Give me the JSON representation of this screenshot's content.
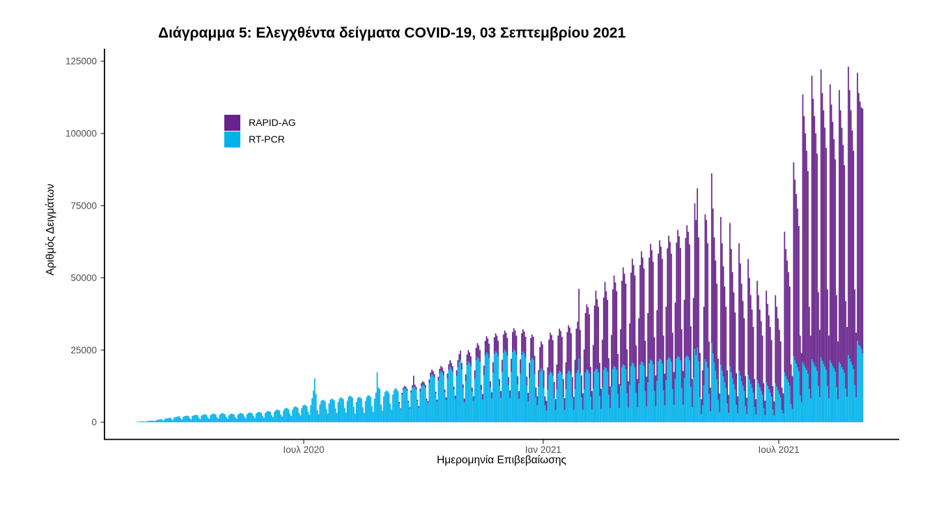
{
  "page": {
    "background": "#ffffff"
  },
  "chart_data": {
    "type": "bar",
    "stacked": true,
    "grid": false,
    "title": "Διάγραμμα 5: Ελεγχθέντα δείγματα COVID-19, 03 Σεπτεμβρίου 2021",
    "xlabel": "Ημερομηνία Επιβεβαίωσης",
    "ylabel": "Αριθμός Δειγμάτων",
    "x_unit": "day",
    "x_start_date": "2020-02-23",
    "x_end_date": "2021-09-03",
    "ylim": [
      0,
      125000
    ],
    "y_ticks": [
      0,
      25000,
      50000,
      75000,
      100000,
      125000
    ],
    "x_ticks": [
      {
        "label": "Ιουλ 2020",
        "day": 129
      },
      {
        "label": "Ιαν 2021",
        "day": 313
      },
      {
        "label": "Ιουλ 2021",
        "day": 494
      }
    ],
    "legend_position": "inside-top-left",
    "legend": [
      {
        "label": "RAPID-AG",
        "color": "#67238b"
      },
      {
        "label": "RT-PCR",
        "color": "#00b2e9"
      }
    ],
    "axis_color": "#000000",
    "tick_text_color": "#4d4d4d",
    "series": [
      {
        "name": "RT-PCR",
        "color": "#00b2e9",
        "values": [
          100,
          150,
          200,
          250,
          250,
          300,
          250,
          200,
          400,
          450,
          500,
          550,
          600,
          500,
          400,
          700,
          800,
          900,
          1000,
          1100,
          800,
          600,
          1200,
          1300,
          1400,
          1500,
          1600,
          1100,
          800,
          1600,
          1800,
          1900,
          2000,
          2100,
          1400,
          900,
          1900,
          2100,
          2200,
          2300,
          2200,
          1500,
          1000,
          2200,
          2400,
          2500,
          2600,
          2400,
          1600,
          1100,
          2300,
          2600,
          2800,
          2700,
          2500,
          1700,
          1200,
          2500,
          2800,
          3000,
          2900,
          2700,
          1800,
          1300,
          2600,
          3000,
          3200,
          3000,
          2800,
          1900,
          1200,
          2400,
          2800,
          3000,
          2900,
          2700,
          1800,
          1300,
          2600,
          3000,
          3200,
          3100,
          2900,
          2000,
          1400,
          2800,
          3200,
          3400,
          3300,
          3100,
          2100,
          1500,
          3000,
          3400,
          3600,
          3500,
          3300,
          2200,
          1600,
          3200,
          3700,
          3900,
          3800,
          3600,
          2400,
          1800,
          3600,
          4200,
          4400,
          4300,
          4000,
          2700,
          2000,
          4000,
          4700,
          5000,
          4800,
          4500,
          3000,
          2200,
          4400,
          5200,
          5500,
          5300,
          5000,
          3300,
          2400,
          4900,
          5800,
          6100,
          5900,
          5500,
          3600,
          2600,
          6000,
          8300,
          11000,
          15200,
          9800,
          4200,
          2800,
          6200,
          7400,
          7800,
          7600,
          7200,
          4600,
          3000,
          6600,
          7800,
          8200,
          8000,
          7600,
          4800,
          3200,
          7000,
          8200,
          8600,
          8400,
          8000,
          5000,
          3400,
          7400,
          8800,
          9200,
          9000,
          8600,
          5400,
          3000,
          7000,
          8400,
          8800,
          8600,
          8200,
          5200,
          3200,
          7400,
          8800,
          9400,
          9200,
          8800,
          5600,
          3600,
          8200,
          10200,
          17300,
          12000,
          11500,
          6200,
          4000,
          9000,
          10500,
          11000,
          10800,
          10200,
          6600,
          4400,
          9600,
          11200,
          11800,
          11500,
          10800,
          6700,
          4600,
          9800,
          11500,
          12000,
          11700,
          11100,
          7100,
          4900,
          10400,
          12000,
          12500,
          12100,
          11500,
          7400,
          5200,
          10800,
          12600,
          13100,
          12800,
          12100,
          7700,
          6800,
          13800,
          16000,
          16800,
          16400,
          15600,
          10000,
          7200,
          14600,
          17000,
          17800,
          17400,
          16400,
          10600,
          7800,
          15400,
          18200,
          19400,
          18600,
          17600,
          11400,
          8200,
          16200,
          19200,
          21000,
          21800,
          18400,
          12000,
          7000,
          14400,
          20000,
          21200,
          20600,
          19600,
          10600,
          7500,
          15300,
          21600,
          22800,
          22200,
          21000,
          11300,
          8000,
          16400,
          23200,
          24400,
          23800,
          22400,
          12200,
          8400,
          17200,
          23800,
          24800,
          24200,
          22800,
          12700,
          8600,
          17600,
          24200,
          25200,
          24600,
          23200,
          13000,
          8600,
          17600,
          24400,
          25400,
          24800,
          23400,
          13200,
          8200,
          17000,
          23600,
          24600,
          24000,
          22600,
          12800,
          7400,
          15400,
          21600,
          22400,
          21800,
          16800,
          8800,
          6000,
          12400,
          17600,
          18800,
          18000,
          12000,
          6000,
          4200,
          11400,
          16600,
          17600,
          17200,
          16200,
          8400,
          4400,
          11600,
          17000,
          18000,
          17600,
          16600,
          8800,
          4400,
          11600,
          17000,
          18000,
          17600,
          16600,
          8800,
          4400,
          11600,
          17200,
          18200,
          22200,
          17000,
          8800,
          4400,
          11600,
          17400,
          18400,
          18000,
          17000,
          9000,
          4600,
          11800,
          17800,
          18800,
          18400,
          17400,
          9200,
          4800,
          12200,
          18200,
          19200,
          18800,
          17600,
          9600,
          5000,
          12400,
          18600,
          19600,
          19200,
          18200,
          9800,
          5000,
          12800,
          19200,
          20200,
          19800,
          18600,
          10200,
          5200,
          13200,
          19600,
          20800,
          20400,
          19200,
          10400,
          5400,
          13600,
          20000,
          21200,
          20800,
          19600,
          10800,
          5600,
          14000,
          20600,
          21800,
          21400,
          20200,
          11000,
          5800,
          14400,
          21200,
          22200,
          21800,
          20400,
          11200,
          6000,
          14800,
          21800,
          22600,
          22200,
          21000,
          11600,
          6200,
          15200,
          22200,
          23000,
          22600,
          21600,
          12000,
          6200,
          15400,
          22600,
          23200,
          22800,
          21600,
          12400,
          5400,
          15600,
          25600,
          23400,
          26000,
          21200,
          8800,
          3000,
          6000,
          13000,
          22000,
          21000,
          19000,
          10000,
          4000,
          27600,
          24000,
          21000,
          18000,
          15000,
          8000,
          3600,
          20000,
          18000,
          16000,
          14000,
          12000,
          6600,
          3400,
          19500,
          17400,
          15400,
          13400,
          11400,
          6200,
          3200,
          18000,
          16200,
          14400,
          12800,
          11000,
          5800,
          3000,
          16600,
          15000,
          13400,
          12000,
          10400,
          5400,
          2800,
          14800,
          13600,
          12200,
          11000,
          9600,
          5000,
          2600,
          14000,
          12800,
          11600,
          10400,
          9000,
          4600,
          2500,
          13600,
          12400,
          11200,
          10000,
          8800,
          4400,
          3200,
          17400,
          16000,
          15000,
          14000,
          12800,
          6400,
          4800,
          23000,
          21600,
          20400,
          19200,
          17800,
          9400,
          7000,
          21000,
          20000,
          19000,
          18200,
          17000,
          11600,
          8400,
          22000,
          21000,
          20000,
          19200,
          18000,
          12600,
          8800,
          22500,
          21400,
          20400,
          19400,
          18200,
          12800,
          8400,
          21600,
          20600,
          19600,
          18800,
          17600,
          12300,
          8000,
          21000,
          20200,
          19200,
          18400,
          17200,
          11800,
          9000,
          23400,
          22200,
          21000,
          20000,
          18600,
          13000,
          8800,
          28400,
          27000,
          26500,
          25500,
          24000
        ]
      },
      {
        "name": "RAPID-AG",
        "color": "#67238b",
        "values": [
          0,
          0,
          0,
          0,
          0,
          0,
          0,
          0,
          0,
          0,
          0,
          0,
          0,
          0,
          0,
          0,
          0,
          0,
          0,
          0,
          0,
          0,
          0,
          0,
          0,
          0,
          0,
          0,
          0,
          0,
          0,
          0,
          0,
          0,
          0,
          0,
          0,
          0,
          0,
          0,
          0,
          0,
          0,
          0,
          0,
          0,
          0,
          0,
          0,
          0,
          0,
          0,
          0,
          0,
          0,
          0,
          0,
          0,
          0,
          0,
          0,
          0,
          0,
          0,
          0,
          0,
          0,
          0,
          0,
          0,
          0,
          0,
          0,
          0,
          0,
          0,
          0,
          0,
          0,
          0,
          0,
          0,
          0,
          0,
          0,
          0,
          0,
          0,
          0,
          0,
          0,
          0,
          0,
          0,
          0,
          0,
          0,
          0,
          0,
          0,
          0,
          0,
          0,
          0,
          0,
          0,
          0,
          0,
          0,
          0,
          0,
          0,
          0,
          0,
          0,
          0,
          0,
          0,
          0,
          0,
          0,
          0,
          0,
          0,
          0,
          0,
          0,
          0,
          0,
          0,
          0,
          0,
          0,
          0,
          0,
          0,
          0,
          0,
          0,
          0,
          0,
          0,
          0,
          0,
          0,
          0,
          0,
          0,
          0,
          0,
          0,
          0,
          0,
          0,
          0,
          0,
          0,
          0,
          0,
          0,
          0,
          0,
          0,
          0,
          0,
          0,
          0,
          0,
          0,
          0,
          0,
          0,
          0,
          0,
          0,
          0,
          0,
          0,
          0,
          0,
          0,
          0,
          0,
          0,
          0,
          0,
          0,
          0,
          0,
          0,
          0,
          0,
          0,
          0,
          0,
          0,
          0,
          0,
          0,
          0,
          0,
          0,
          300,
          200,
          400,
          500,
          600,
          600,
          500,
          300,
          300,
          600,
          800,
          3600,
          900,
          700,
          400,
          400,
          800,
          1000,
          1100,
          1000,
          900,
          500,
          500,
          1000,
          1200,
          1400,
          1300,
          1100,
          600,
          600,
          1200,
          1500,
          1700,
          1600,
          1400,
          700,
          800,
          1500,
          1900,
          2100,
          2000,
          1800,
          900,
          1000,
          1800,
          2300,
          2600,
          3000,
          2200,
          1100,
          1200,
          2200,
          3400,
          3800,
          3600,
          3200,
          1400,
          1500,
          2700,
          4200,
          4600,
          4400,
          4000,
          1700,
          1800,
          3200,
          5000,
          5400,
          5200,
          4800,
          2000,
          2000,
          3600,
          5600,
          6000,
          5800,
          5400,
          2300,
          2200,
          4000,
          6200,
          6600,
          6400,
          6000,
          2600,
          2400,
          4400,
          6800,
          7200,
          7000,
          6600,
          2800,
          2600,
          4800,
          7200,
          7600,
          7400,
          7000,
          3000,
          2800,
          5200,
          7600,
          8000,
          7800,
          6200,
          3200,
          3000,
          5600,
          8400,
          9200,
          9000,
          6000,
          3000,
          3200,
          7600,
          12000,
          13400,
          13000,
          12200,
          5600,
          3600,
          8400,
          13000,
          14400,
          14000,
          13000,
          6200,
          4000,
          9200,
          14200,
          15600,
          15200,
          14200,
          6800,
          4400,
          10000,
          15200,
          16600,
          24000,
          15000,
          7400,
          5600,
          13600,
          20400,
          22400,
          21800,
          20400,
          10200,
          6200,
          15000,
          22600,
          26800,
          24200,
          22600,
          11400,
          6800,
          16400,
          25000,
          29400,
          26600,
          24800,
          12600,
          7400,
          17800,
          27400,
          31200,
          29200,
          27200,
          13800,
          8200,
          19400,
          29800,
          33400,
          31600,
          29400,
          15000,
          9000,
          21000,
          32200,
          35800,
          34000,
          31600,
          16200,
          9600,
          22400,
          34400,
          38000,
          36200,
          33600,
          17400,
          10200,
          23800,
          36400,
          40000,
          38200,
          35400,
          18400,
          10400,
          24400,
          37200,
          40800,
          39000,
          36200,
          18800,
          10800,
          25200,
          38400,
          42000,
          40200,
          37400,
          19400,
          11200,
          26200,
          40000,
          43600,
          41800,
          38800,
          20200,
          11600,
          27000,
          41200,
          45000,
          43200,
          40000,
          20800,
          9600,
          27400,
          50200,
          46600,
          55000,
          42800,
          15200,
          5000,
          12000,
          27000,
          50000,
          49000,
          43000,
          18000,
          8000,
          58600,
          50000,
          43000,
          38000,
          33000,
          14000,
          6400,
          51100,
          44000,
          38000,
          33000,
          28000,
          11400,
          6100,
          49500,
          42600,
          36600,
          31600,
          26600,
          10800,
          5800,
          44000,
          38800,
          33600,
          29200,
          25000,
          10200,
          5500,
          39900,
          35000,
          30600,
          27000,
          22600,
          9600,
          5200,
          34200,
          30400,
          26800,
          24000,
          20400,
          8500,
          4900,
          31600,
          28200,
          25400,
          22600,
          19500,
          7900,
          4700,
          30400,
          27600,
          24800,
          22000,
          19200,
          7600,
          6800,
          48600,
          44000,
          41000,
          38000,
          34200,
          13600,
          11200,
          67000,
          62400,
          58600,
          54800,
          50200,
          20600,
          17000,
          92500,
          86000,
          81000,
          75800,
          70000,
          28400,
          21600,
          98000,
          91000,
          86000,
          80800,
          75000,
          32400,
          23200,
          99600,
          92600,
          87600,
          82600,
          76800,
          33200,
          21600,
          95400,
          89400,
          84400,
          79200,
          73400,
          31700,
          20000,
          94000,
          87800,
          82800,
          77600,
          71800,
          30200,
          24000,
          99700,
          92800,
          87000,
          81000,
          75400,
          33000,
          22200,
          92600,
          87000,
          84500,
          83500,
          84600
        ]
      }
    ]
  }
}
